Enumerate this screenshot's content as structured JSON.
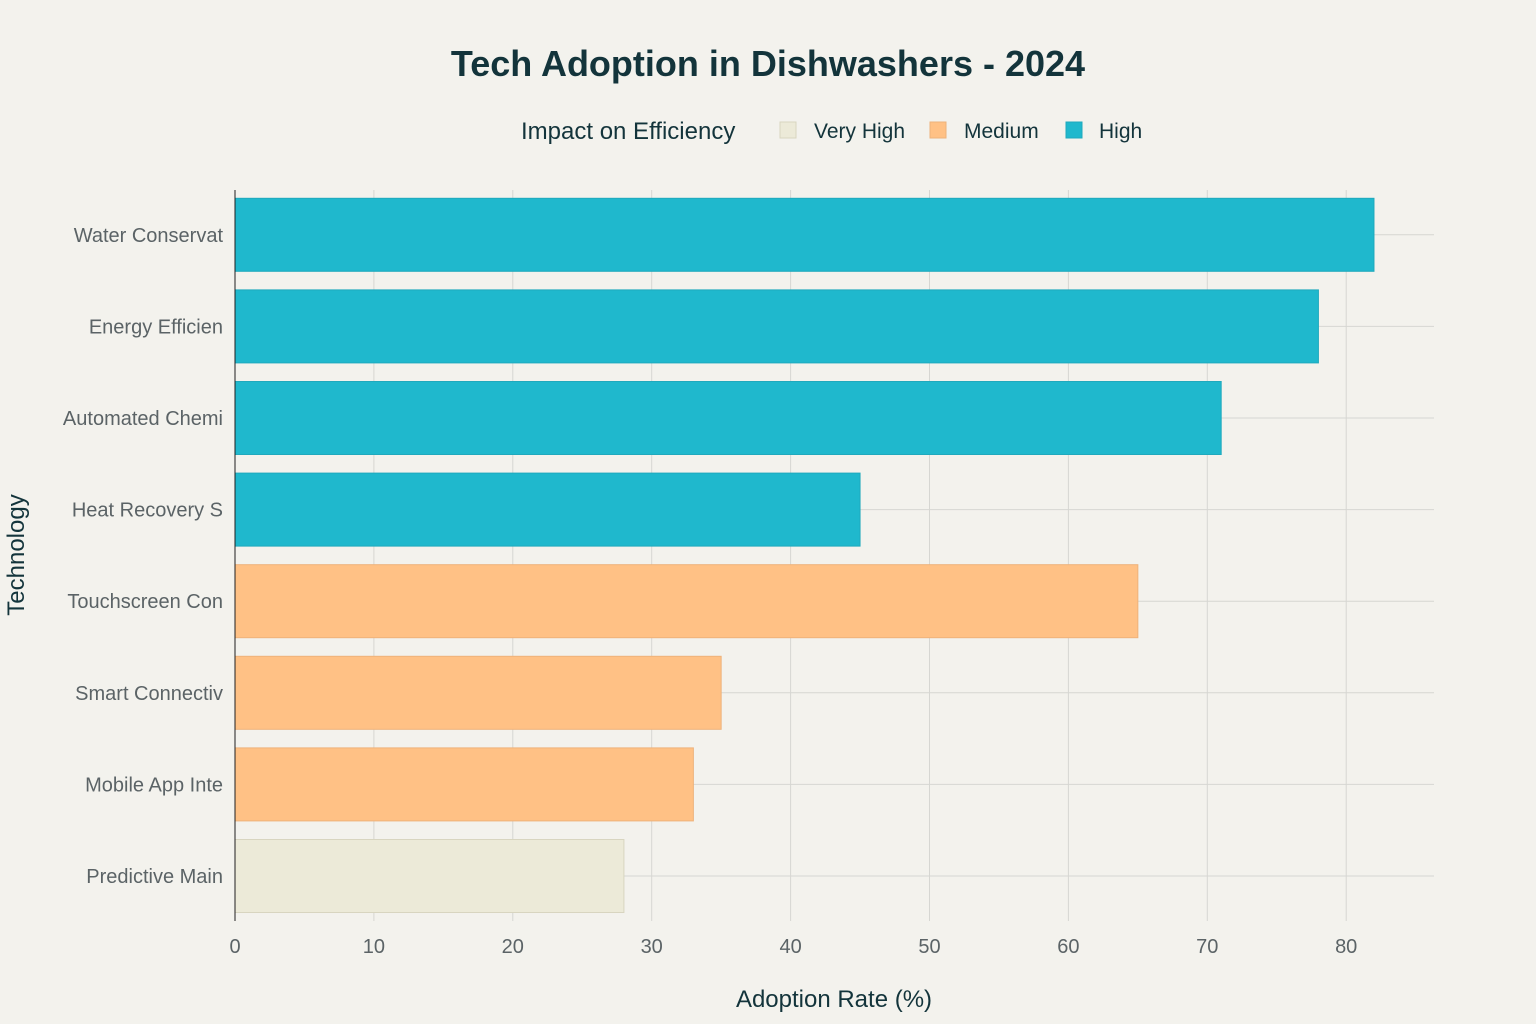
{
  "chart_data": {
    "type": "bar",
    "orientation": "horizontal",
    "title": "Tech Adoption in Dishwashers - 2024",
    "xlabel": "Adoption Rate (%)",
    "ylabel": "Technology",
    "xlim": [
      0,
      86
    ],
    "xticks": [
      0,
      10,
      20,
      30,
      40,
      50,
      60,
      70,
      80
    ],
    "grid": true,
    "legend": {
      "title": "Impact on Efficiency",
      "position": "top-center",
      "entries": [
        {
          "name": "Very High",
          "color": "#ecead8"
        },
        {
          "name": "Medium",
          "color": "#ffc185"
        },
        {
          "name": "High",
          "color": "#1fb8cd"
        }
      ]
    },
    "categories": [
      "Water Conservat",
      "Energy Efficien",
      "Automated Chemi",
      "Heat Recovery S",
      "Touchscreen Con",
      "Smart Connectiv",
      "Mobile App Inte",
      "Predictive Main"
    ],
    "values": [
      82,
      78,
      71,
      45,
      65,
      35,
      33,
      28
    ],
    "impact": [
      "High",
      "High",
      "High",
      "High",
      "Medium",
      "Medium",
      "Medium",
      "Very High"
    ]
  }
}
